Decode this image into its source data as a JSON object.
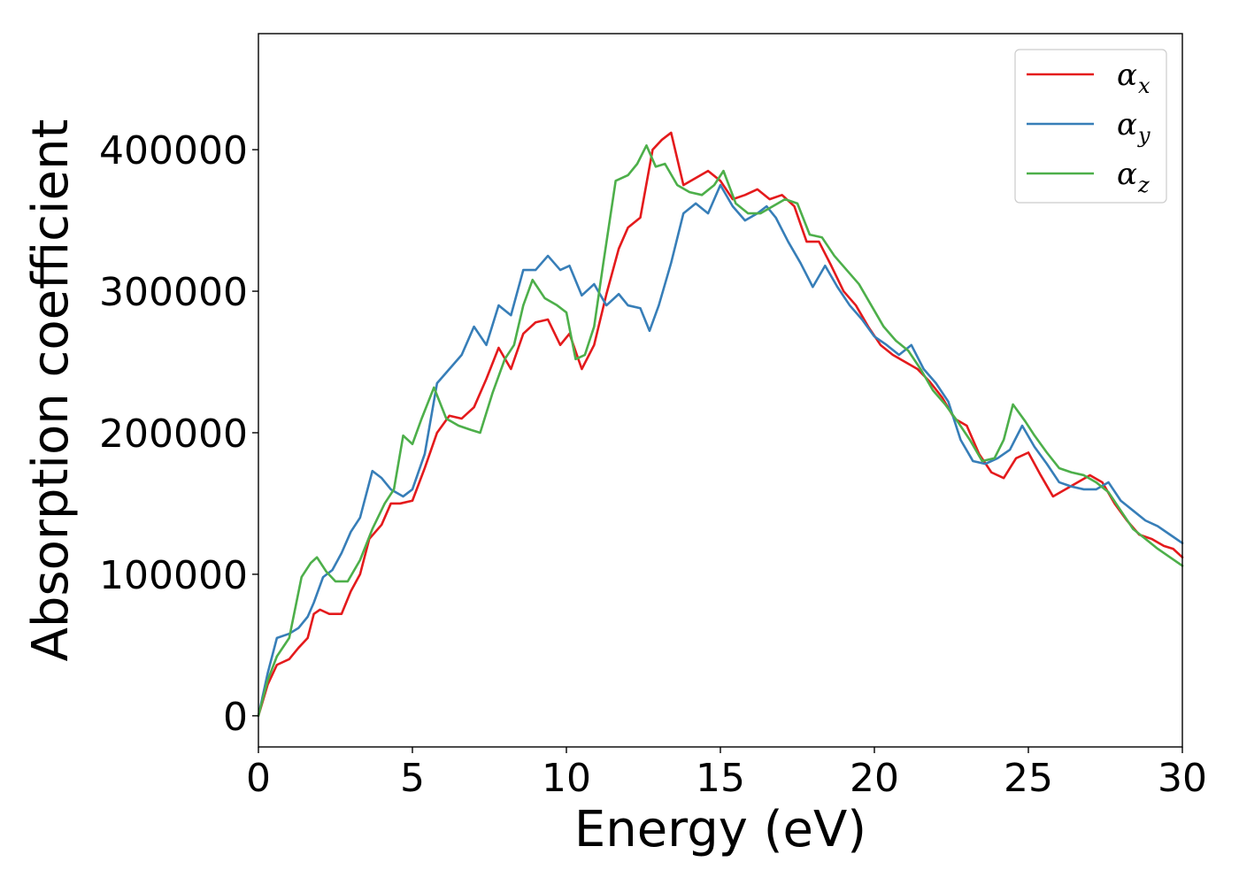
{
  "chart_data": {
    "type": "line",
    "title": "",
    "xlabel": "Energy (eV)",
    "ylabel": "Absorption coefficient",
    "xlim": [
      0,
      30
    ],
    "ylim": [
      -22000,
      482000
    ],
    "xticks": [
      0,
      5,
      10,
      15,
      20,
      25,
      30
    ],
    "xtick_labels": [
      "0",
      "5",
      "10",
      "15",
      "20",
      "25",
      "30"
    ],
    "yticks": [
      0,
      100000,
      200000,
      300000,
      400000
    ],
    "ytick_labels": [
      "0",
      "100000",
      "200000",
      "300000",
      "400000"
    ],
    "grid": false,
    "legend_position": "top-right",
    "series": [
      {
        "name": "α",
        "subscript": "x",
        "color": "#e41a1c",
        "points": [
          [
            0,
            0
          ],
          [
            0.3,
            22000
          ],
          [
            0.6,
            36000
          ],
          [
            1.0,
            40000
          ],
          [
            1.3,
            48000
          ],
          [
            1.6,
            55000
          ],
          [
            1.8,
            72000
          ],
          [
            2.0,
            75000
          ],
          [
            2.3,
            72000
          ],
          [
            2.7,
            72000
          ],
          [
            3.0,
            88000
          ],
          [
            3.3,
            100000
          ],
          [
            3.6,
            125000
          ],
          [
            4.0,
            135000
          ],
          [
            4.3,
            150000
          ],
          [
            4.6,
            150000
          ],
          [
            5.0,
            152000
          ],
          [
            5.4,
            175000
          ],
          [
            5.8,
            200000
          ],
          [
            6.2,
            212000
          ],
          [
            6.6,
            210000
          ],
          [
            7.0,
            218000
          ],
          [
            7.4,
            238000
          ],
          [
            7.8,
            260000
          ],
          [
            8.2,
            245000
          ],
          [
            8.6,
            270000
          ],
          [
            9.0,
            278000
          ],
          [
            9.4,
            280000
          ],
          [
            9.8,
            262000
          ],
          [
            10.1,
            270000
          ],
          [
            10.5,
            245000
          ],
          [
            10.9,
            262000
          ],
          [
            11.3,
            298000
          ],
          [
            11.7,
            330000
          ],
          [
            12.0,
            345000
          ],
          [
            12.4,
            352000
          ],
          [
            12.8,
            400000
          ],
          [
            13.1,
            407000
          ],
          [
            13.4,
            412000
          ],
          [
            13.8,
            375000
          ],
          [
            14.2,
            380000
          ],
          [
            14.6,
            385000
          ],
          [
            15.0,
            378000
          ],
          [
            15.4,
            365000
          ],
          [
            15.8,
            368000
          ],
          [
            16.2,
            372000
          ],
          [
            16.6,
            365000
          ],
          [
            17.0,
            368000
          ],
          [
            17.4,
            360000
          ],
          [
            17.8,
            335000
          ],
          [
            18.2,
            335000
          ],
          [
            18.6,
            318000
          ],
          [
            19.0,
            300000
          ],
          [
            19.4,
            290000
          ],
          [
            19.8,
            275000
          ],
          [
            20.2,
            262000
          ],
          [
            20.6,
            255000
          ],
          [
            21.0,
            250000
          ],
          [
            21.4,
            245000
          ],
          [
            21.8,
            236000
          ],
          [
            22.2,
            225000
          ],
          [
            22.6,
            210000
          ],
          [
            23.0,
            205000
          ],
          [
            23.4,
            185000
          ],
          [
            23.8,
            172000
          ],
          [
            24.2,
            168000
          ],
          [
            24.6,
            182000
          ],
          [
            25.0,
            186000
          ],
          [
            25.4,
            170000
          ],
          [
            25.8,
            155000
          ],
          [
            26.2,
            160000
          ],
          [
            26.6,
            165000
          ],
          [
            27.0,
            170000
          ],
          [
            27.4,
            165000
          ],
          [
            27.8,
            150000
          ],
          [
            28.2,
            138000
          ],
          [
            28.6,
            128000
          ],
          [
            29.0,
            125000
          ],
          [
            29.4,
            120000
          ],
          [
            29.7,
            118000
          ],
          [
            30.0,
            112000
          ]
        ]
      },
      {
        "name": "α",
        "subscript": "y",
        "color": "#377eb8",
        "points": [
          [
            0,
            0
          ],
          [
            0.3,
            30000
          ],
          [
            0.6,
            55000
          ],
          [
            1.0,
            58000
          ],
          [
            1.3,
            62000
          ],
          [
            1.6,
            70000
          ],
          [
            1.8,
            80000
          ],
          [
            2.1,
            98000
          ],
          [
            2.4,
            103000
          ],
          [
            2.7,
            115000
          ],
          [
            3.0,
            130000
          ],
          [
            3.3,
            140000
          ],
          [
            3.7,
            173000
          ],
          [
            4.0,
            168000
          ],
          [
            4.3,
            160000
          ],
          [
            4.7,
            155000
          ],
          [
            5.0,
            160000
          ],
          [
            5.4,
            185000
          ],
          [
            5.8,
            235000
          ],
          [
            6.2,
            245000
          ],
          [
            6.6,
            255000
          ],
          [
            7.0,
            275000
          ],
          [
            7.4,
            262000
          ],
          [
            7.8,
            290000
          ],
          [
            8.2,
            283000
          ],
          [
            8.6,
            315000
          ],
          [
            9.0,
            315000
          ],
          [
            9.4,
            325000
          ],
          [
            9.8,
            315000
          ],
          [
            10.1,
            318000
          ],
          [
            10.5,
            297000
          ],
          [
            10.9,
            305000
          ],
          [
            11.3,
            290000
          ],
          [
            11.7,
            298000
          ],
          [
            12.0,
            290000
          ],
          [
            12.4,
            288000
          ],
          [
            12.7,
            272000
          ],
          [
            13.0,
            290000
          ],
          [
            13.4,
            320000
          ],
          [
            13.8,
            355000
          ],
          [
            14.2,
            362000
          ],
          [
            14.6,
            355000
          ],
          [
            15.0,
            375000
          ],
          [
            15.4,
            360000
          ],
          [
            15.8,
            350000
          ],
          [
            16.2,
            355000
          ],
          [
            16.5,
            360000
          ],
          [
            16.8,
            352000
          ],
          [
            17.2,
            335000
          ],
          [
            17.6,
            320000
          ],
          [
            18.0,
            303000
          ],
          [
            18.4,
            318000
          ],
          [
            18.8,
            303000
          ],
          [
            19.2,
            290000
          ],
          [
            19.6,
            280000
          ],
          [
            20.0,
            268000
          ],
          [
            20.4,
            262000
          ],
          [
            20.8,
            255000
          ],
          [
            21.2,
            262000
          ],
          [
            21.6,
            245000
          ],
          [
            22.0,
            235000
          ],
          [
            22.4,
            222000
          ],
          [
            22.8,
            195000
          ],
          [
            23.2,
            180000
          ],
          [
            23.6,
            178000
          ],
          [
            24.0,
            182000
          ],
          [
            24.4,
            188000
          ],
          [
            24.8,
            205000
          ],
          [
            25.2,
            190000
          ],
          [
            25.6,
            178000
          ],
          [
            26.0,
            165000
          ],
          [
            26.4,
            162000
          ],
          [
            26.8,
            160000
          ],
          [
            27.2,
            160000
          ],
          [
            27.6,
            165000
          ],
          [
            28.0,
            152000
          ],
          [
            28.4,
            145000
          ],
          [
            28.8,
            138000
          ],
          [
            29.2,
            134000
          ],
          [
            29.6,
            128000
          ],
          [
            30.0,
            122000
          ]
        ]
      },
      {
        "name": "α",
        "subscript": "z",
        "color": "#4daf4a",
        "points": [
          [
            0,
            0
          ],
          [
            0.3,
            25000
          ],
          [
            0.6,
            42000
          ],
          [
            1.0,
            55000
          ],
          [
            1.4,
            98000
          ],
          [
            1.7,
            108000
          ],
          [
            1.9,
            112000
          ],
          [
            2.2,
            102000
          ],
          [
            2.5,
            95000
          ],
          [
            2.9,
            95000
          ],
          [
            3.3,
            110000
          ],
          [
            3.7,
            132000
          ],
          [
            4.1,
            150000
          ],
          [
            4.4,
            160000
          ],
          [
            4.7,
            198000
          ],
          [
            5.0,
            192000
          ],
          [
            5.3,
            210000
          ],
          [
            5.7,
            232000
          ],
          [
            6.1,
            210000
          ],
          [
            6.5,
            205000
          ],
          [
            6.9,
            202000
          ],
          [
            7.2,
            200000
          ],
          [
            7.6,
            228000
          ],
          [
            8.0,
            252000
          ],
          [
            8.3,
            262000
          ],
          [
            8.6,
            290000
          ],
          [
            8.9,
            308000
          ],
          [
            9.3,
            295000
          ],
          [
            9.7,
            290000
          ],
          [
            10.0,
            285000
          ],
          [
            10.3,
            252000
          ],
          [
            10.6,
            255000
          ],
          [
            10.9,
            275000
          ],
          [
            11.2,
            320000
          ],
          [
            11.6,
            378000
          ],
          [
            12.0,
            382000
          ],
          [
            12.3,
            390000
          ],
          [
            12.6,
            403000
          ],
          [
            12.9,
            388000
          ],
          [
            13.2,
            390000
          ],
          [
            13.6,
            375000
          ],
          [
            14.0,
            370000
          ],
          [
            14.4,
            368000
          ],
          [
            14.8,
            375000
          ],
          [
            15.1,
            385000
          ],
          [
            15.5,
            362000
          ],
          [
            15.9,
            355000
          ],
          [
            16.3,
            355000
          ],
          [
            16.7,
            360000
          ],
          [
            17.1,
            365000
          ],
          [
            17.5,
            362000
          ],
          [
            17.9,
            340000
          ],
          [
            18.3,
            338000
          ],
          [
            18.7,
            325000
          ],
          [
            19.1,
            315000
          ],
          [
            19.5,
            305000
          ],
          [
            19.9,
            290000
          ],
          [
            20.3,
            275000
          ],
          [
            20.7,
            265000
          ],
          [
            21.1,
            258000
          ],
          [
            21.5,
            245000
          ],
          [
            21.9,
            230000
          ],
          [
            22.3,
            220000
          ],
          [
            22.7,
            208000
          ],
          [
            23.1,
            195000
          ],
          [
            23.5,
            180000
          ],
          [
            23.9,
            182000
          ],
          [
            24.2,
            195000
          ],
          [
            24.5,
            220000
          ],
          [
            24.9,
            208000
          ],
          [
            25.2,
            198000
          ],
          [
            25.6,
            186000
          ],
          [
            26.0,
            175000
          ],
          [
            26.4,
            172000
          ],
          [
            26.8,
            170000
          ],
          [
            27.2,
            165000
          ],
          [
            27.6,
            158000
          ],
          [
            28.0,
            145000
          ],
          [
            28.4,
            132000
          ],
          [
            28.8,
            125000
          ],
          [
            29.2,
            118000
          ],
          [
            29.6,
            112000
          ],
          [
            30.0,
            106000
          ]
        ]
      }
    ]
  }
}
